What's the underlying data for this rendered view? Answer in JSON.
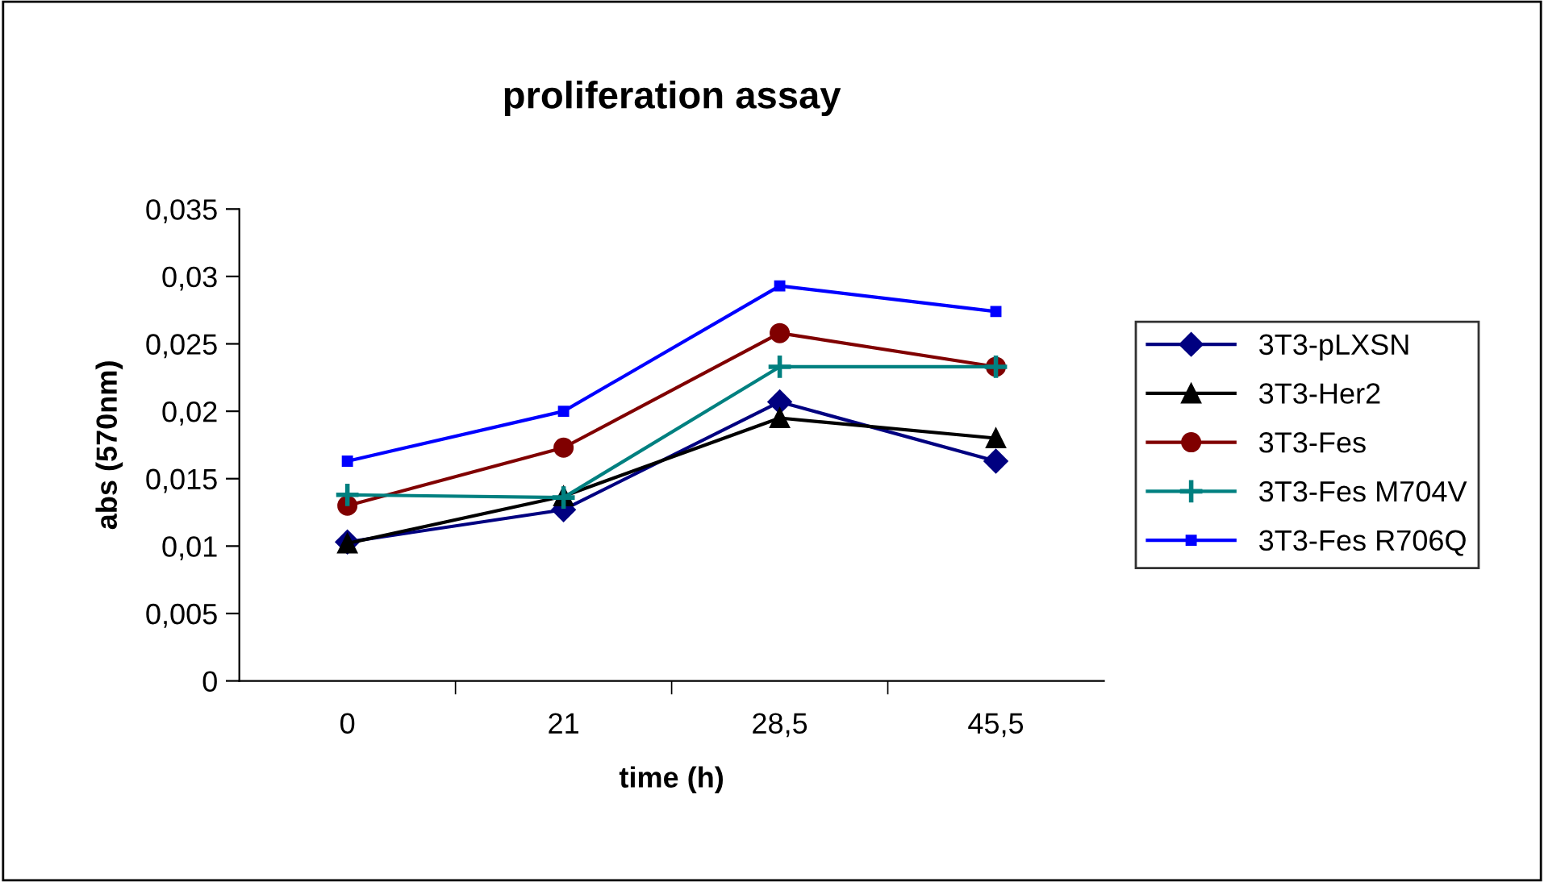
{
  "chart_data": {
    "type": "line",
    "title": "proliferation assay",
    "xlabel": "time (h)",
    "ylabel": "abs (570nm)",
    "categories": [
      "0",
      "21",
      "28,5",
      "45,5"
    ],
    "ylim": [
      0,
      0.035
    ],
    "yticks": [
      {
        "value": 0,
        "label": "0"
      },
      {
        "value": 0.005,
        "label": "0,005"
      },
      {
        "value": 0.01,
        "label": "0,01"
      },
      {
        "value": 0.015,
        "label": "0,015"
      },
      {
        "value": 0.02,
        "label": "0,02"
      },
      {
        "value": 0.025,
        "label": "0,025"
      },
      {
        "value": 0.03,
        "label": "0,03"
      },
      {
        "value": 0.035,
        "label": "0,035"
      }
    ],
    "grid": false,
    "legend": "right",
    "series": [
      {
        "name": "3T3-pLXSN",
        "color": "#000080",
        "marker": "diamond",
        "values": [
          0.0103,
          0.0127,
          0.0207,
          0.0163
        ]
      },
      {
        "name": "3T3-Her2",
        "color": "#000000",
        "marker": "triangle",
        "values": [
          0.0102,
          0.0137,
          0.0195,
          0.018
        ]
      },
      {
        "name": "3T3-Fes",
        "color": "#800000",
        "marker": "circle",
        "values": [
          0.013,
          0.0173,
          0.0258,
          0.0233
        ]
      },
      {
        "name": "3T3-Fes M704V",
        "color": "#008080",
        "marker": "cross",
        "values": [
          0.0138,
          0.0136,
          0.0233,
          0.0233
        ]
      },
      {
        "name": "3T3-Fes R706Q",
        "color": "#0000ff",
        "marker": "square",
        "values": [
          0.0163,
          0.02,
          0.0293,
          0.0274
        ]
      }
    ]
  }
}
